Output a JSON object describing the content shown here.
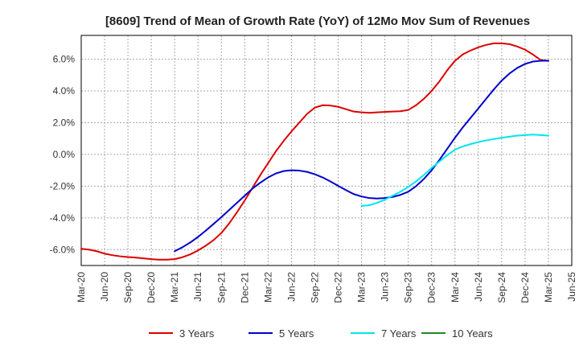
{
  "chart_data": {
    "type": "line",
    "title": "[8609]  Trend of Mean of Growth Rate (YoY) of 12Mo Mov Sum of Revenues",
    "xlabel": "",
    "ylabel": "",
    "ylim": [
      -7.0,
      7.5
    ],
    "grid": true,
    "legend_position": "bottom",
    "x_tick_labels": [
      "Mar-20",
      "Jun-20",
      "Sep-20",
      "Dec-20",
      "Mar-21",
      "Jun-21",
      "Sep-21",
      "Dec-21",
      "Mar-22",
      "Jun-22",
      "Sep-22",
      "Dec-22",
      "Mar-23",
      "Jun-23",
      "Sep-23",
      "Dec-23",
      "Mar-24",
      "Jun-24",
      "Sep-24",
      "Dec-24",
      "Mar-25",
      "Jun-25"
    ],
    "y_ticks": [
      -6.0,
      -4.0,
      -2.0,
      0.0,
      2.0,
      4.0,
      6.0
    ],
    "y_tick_labels": [
      "-6.0%",
      "-4.0%",
      "-2.0%",
      "0.0%",
      "2.0%",
      "4.0%",
      "6.0%"
    ],
    "series": [
      {
        "name": "3 Years",
        "color": "#dd0000",
        "x": [
          "Mar-20",
          "Apr-20",
          "May-20",
          "Jun-20",
          "Jul-20",
          "Aug-20",
          "Sep-20",
          "Oct-20",
          "Nov-20",
          "Dec-20",
          "Jan-21",
          "Feb-21",
          "Mar-21",
          "Apr-21",
          "May-21",
          "Jun-21",
          "Jul-21",
          "Aug-21",
          "Sep-21",
          "Oct-21",
          "Nov-21",
          "Dec-21",
          "Jan-22",
          "Feb-22",
          "Mar-22",
          "Apr-22",
          "May-22",
          "Jun-22",
          "Jul-22",
          "Aug-22",
          "Sep-22",
          "Oct-22",
          "Nov-22",
          "Dec-22",
          "Jan-23",
          "Feb-23",
          "Mar-23",
          "Apr-23",
          "May-23",
          "Jun-23",
          "Jul-23",
          "Aug-23",
          "Sep-23",
          "Oct-23",
          "Nov-23",
          "Dec-23",
          "Jan-24",
          "Feb-24",
          "Mar-24",
          "Apr-24",
          "May-24",
          "Jun-24",
          "Jul-24",
          "Aug-24",
          "Sep-24",
          "Oct-24",
          "Nov-24",
          "Dec-24",
          "Jan-25",
          "Feb-25",
          "Mar-25"
        ],
        "values": [
          -5.95,
          -6.0,
          -6.1,
          -6.25,
          -6.35,
          -6.42,
          -6.47,
          -6.5,
          -6.55,
          -6.6,
          -6.63,
          -6.63,
          -6.6,
          -6.48,
          -6.3,
          -6.05,
          -5.75,
          -5.4,
          -4.95,
          -4.35,
          -3.65,
          -2.9,
          -2.1,
          -1.3,
          -0.55,
          0.2,
          0.85,
          1.45,
          2.0,
          2.55,
          2.95,
          3.1,
          3.08,
          3.0,
          2.85,
          2.7,
          2.65,
          2.62,
          2.65,
          2.68,
          2.7,
          2.72,
          2.8,
          3.1,
          3.5,
          4.0,
          4.6,
          5.3,
          5.9,
          6.3,
          6.55,
          6.75,
          6.9,
          7.0,
          7.0,
          6.95,
          6.8,
          6.6,
          6.3,
          5.95,
          5.9
        ]
      },
      {
        "name": "5 Years",
        "color": "#0000cc",
        "x": [
          "Mar-21",
          "Apr-21",
          "May-21",
          "Jun-21",
          "Jul-21",
          "Aug-21",
          "Sep-21",
          "Oct-21",
          "Nov-21",
          "Dec-21",
          "Jan-22",
          "Feb-22",
          "Mar-22",
          "Apr-22",
          "May-22",
          "Jun-22",
          "Jul-22",
          "Aug-22",
          "Sep-22",
          "Oct-22",
          "Nov-22",
          "Dec-22",
          "Jan-23",
          "Feb-23",
          "Mar-23",
          "Apr-23",
          "May-23",
          "Jun-23",
          "Jul-23",
          "Aug-23",
          "Sep-23",
          "Oct-23",
          "Nov-23",
          "Dec-23",
          "Jan-24",
          "Feb-24",
          "Mar-24",
          "Apr-24",
          "May-24",
          "Jun-24",
          "Jul-24",
          "Aug-24",
          "Sep-24",
          "Oct-24",
          "Nov-24",
          "Dec-24",
          "Jan-25",
          "Feb-25",
          "Mar-25"
        ],
        "values": [
          -6.1,
          -5.85,
          -5.55,
          -5.2,
          -4.8,
          -4.38,
          -3.95,
          -3.5,
          -3.05,
          -2.6,
          -2.15,
          -1.78,
          -1.45,
          -1.2,
          -1.05,
          -1.0,
          -1.02,
          -1.1,
          -1.25,
          -1.45,
          -1.7,
          -1.98,
          -2.25,
          -2.5,
          -2.65,
          -2.75,
          -2.78,
          -2.75,
          -2.68,
          -2.55,
          -2.35,
          -2.0,
          -1.55,
          -1.0,
          -0.35,
          0.35,
          1.05,
          1.7,
          2.3,
          2.9,
          3.5,
          4.1,
          4.65,
          5.1,
          5.45,
          5.7,
          5.85,
          5.9,
          5.9
        ]
      },
      {
        "name": "7 Years",
        "color": "#00e5ee",
        "x": [
          "Mar-23",
          "Apr-23",
          "May-23",
          "Jun-23",
          "Jul-23",
          "Aug-23",
          "Sep-23",
          "Oct-23",
          "Nov-23",
          "Dec-23",
          "Jan-24",
          "Feb-24",
          "Mar-24",
          "Apr-24",
          "May-24",
          "Jun-24",
          "Jul-24",
          "Aug-24",
          "Sep-24",
          "Oct-24",
          "Nov-24",
          "Dec-24",
          "Jan-25",
          "Feb-25",
          "Mar-25"
        ],
        "values": [
          -3.25,
          -3.2,
          -3.05,
          -2.85,
          -2.6,
          -2.35,
          -2.05,
          -1.7,
          -1.3,
          -0.85,
          -0.45,
          -0.05,
          0.3,
          0.5,
          0.65,
          0.78,
          0.88,
          0.97,
          1.05,
          1.12,
          1.18,
          1.22,
          1.25,
          1.22,
          1.18
        ]
      },
      {
        "name": "10 Years",
        "color": "#228B22",
        "x": [],
        "values": []
      }
    ]
  }
}
